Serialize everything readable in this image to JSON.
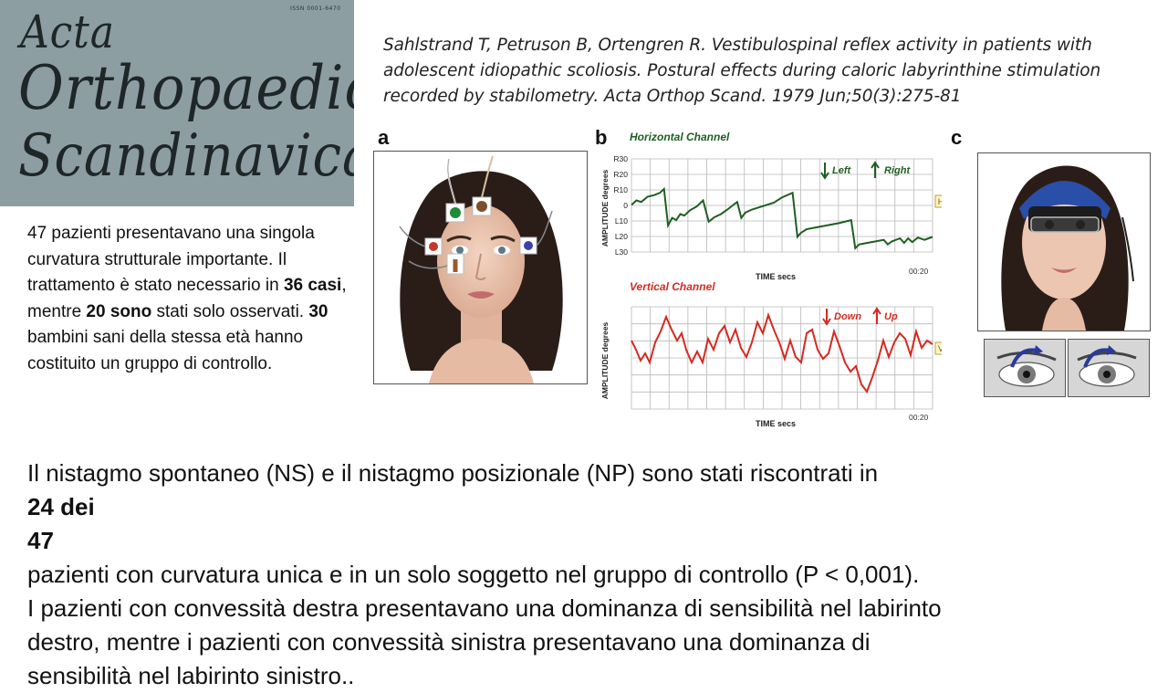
{
  "cover": {
    "issn": "ISSN 0001-6470",
    "title_line1": "Acta",
    "title_line2": "Orthopaedica",
    "title_line3": "Scandinavica"
  },
  "citation": {
    "line1": "Sahlstrand T, Petruson B, Ortengren R. Vestibulospinal reflex activity in patients with",
    "line2": "adolescent idiopathic scoliosis. Postural effects during caloric labyrinthine stimulation",
    "line3": "recorded by stabilometry. Acta Orthop Scand. 1979 Jun;50(3):275-81"
  },
  "left_paragraph": {
    "t1": "47 pazienti presentavano una singola curvatura strutturale importante. Il trattamento è stato necessario in ",
    "b1": "36 casi",
    "t2": ", mentre ",
    "b2": "20 sono",
    "t3": " stati solo osservati. ",
    "b3": "30",
    "t4": " bambini sani della stessa età hanno costituito un gruppo di controllo."
  },
  "bottom_paragraph": {
    "l1_text": "Il nistagmo spontaneo (NS) e il nistagmo posizionale (NP) sono stati riscontrati in ",
    "l1_bold": "24 dei",
    "l2_bold": "47",
    "l2_text": " pazienti con curvatura unica e in un solo soggetto nel gruppo di controllo (P < 0,001).",
    "l3": "I pazienti con convessità destra presentavano una dominanza di sensibilità nel labirinto",
    "l4": "destro, mentre i pazienti con convessità sinistra presentavano una dominanza di",
    "l5": "sensibilità nel labirinto sinistro.."
  },
  "figure": {
    "label_a": "a",
    "label_b": "b",
    "label_c": "c",
    "horizontal": {
      "title": "Horizontal Channel",
      "ylabel": "AMPLITUDE degrees",
      "xlabel": "TIME secs",
      "time_end": "00:20",
      "yticks": [
        "R30",
        "R20",
        "R10",
        "0",
        "L10",
        "L20",
        "L30"
      ],
      "legend_left": "Left",
      "legend_right": "Right",
      "marker": "H",
      "color": "#1f5e22"
    },
    "vertical": {
      "title": "Vertical Channel",
      "ylabel": "AMPLITUDE degrees",
      "xlabel": "TIME secs",
      "time_end": "00:20",
      "legend_down": "Down",
      "legend_up": "Up",
      "marker": "V",
      "color": "#d42a22"
    }
  }
}
